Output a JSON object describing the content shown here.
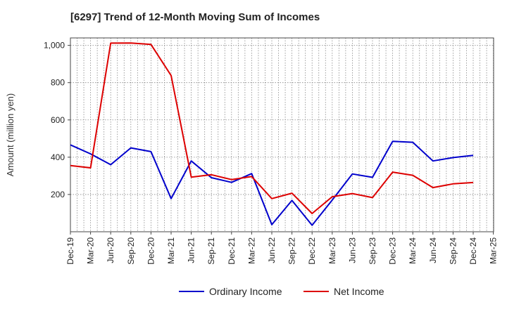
{
  "chart_data": {
    "type": "line",
    "title": "[6297]  Trend of 12-Month Moving Sum of Incomes",
    "xlabel": "",
    "ylabel": "Amount (million yen)",
    "ylim": [
      0,
      1040
    ],
    "yticks": [
      200,
      400,
      600,
      800,
      1000
    ],
    "ytick_labels": [
      "200",
      "400",
      "600",
      "800",
      "1,000"
    ],
    "x": [
      "Dec-19",
      "Mar-20",
      "Jun-20",
      "Sep-20",
      "Dec-20",
      "Mar-21",
      "Jun-21",
      "Sep-21",
      "Dec-21",
      "Mar-22",
      "Jun-22",
      "Sep-22",
      "Dec-22",
      "Mar-23",
      "Jun-23",
      "Sep-23",
      "Dec-23",
      "Mar-24",
      "Jun-24",
      "Sep-24",
      "Dec-24",
      "Mar-25"
    ],
    "x_tick_labels": [
      "Dec-19",
      "Mar-20",
      "Jun-20",
      "Sep-20",
      "Dec-20",
      "Mar-21",
      "Jun-21",
      "Sep-21",
      "Dec-21",
      "Mar-22",
      "Jun-22",
      "Sep-22",
      "Dec-22",
      "Mar-23",
      "Jun-23",
      "Sep-23",
      "Dec-23",
      "Mar-24",
      "Jun-24",
      "Sep-24",
      "Dec-24",
      "Mar-25"
    ],
    "grid": true,
    "legend_position": "bottom-center",
    "series": [
      {
        "name": "Ordinary Income",
        "color": "#0000cc",
        "values": [
          466,
          418,
          360,
          450,
          430,
          178,
          380,
          290,
          265,
          312,
          38,
          168,
          35,
          170,
          310,
          292,
          485,
          480,
          380,
          398,
          410,
          null
        ]
      },
      {
        "name": "Net Income",
        "color": "#dd0000",
        "values": [
          355,
          343,
          1012,
          1013,
          1005,
          838,
          293,
          306,
          280,
          296,
          178,
          207,
          98,
          188,
          205,
          183,
          320,
          303,
          237,
          257,
          264,
          null
        ]
      }
    ]
  }
}
